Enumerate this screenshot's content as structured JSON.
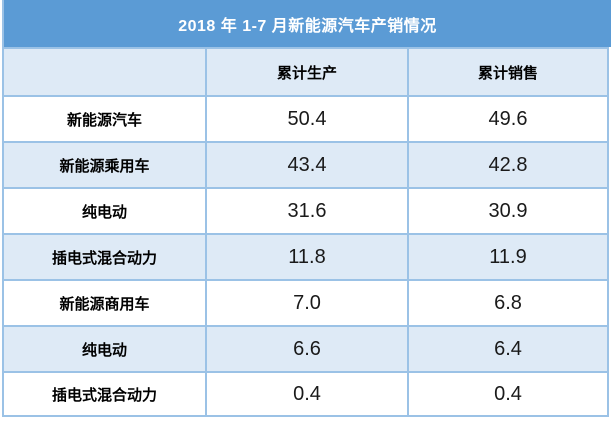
{
  "table": {
    "title": "2018 年 1-7 月新能源汽车产销情况",
    "header": {
      "col1": "",
      "col2": "累计生产",
      "col3": "累计销售"
    },
    "rows": [
      {
        "label": "新能源汽车",
        "production": "50.4",
        "sales": "49.6"
      },
      {
        "label": "新能源乘用车",
        "production": "43.4",
        "sales": "42.8"
      },
      {
        "label": "纯电动",
        "production": "31.6",
        "sales": "30.9"
      },
      {
        "label": "插电式混合动力",
        "production": "11.8",
        "sales": "11.9"
      },
      {
        "label": "新能源商用车",
        "production": "7.0",
        "sales": "6.8"
      },
      {
        "label": "纯电动",
        "production": "6.6",
        "sales": "6.4"
      },
      {
        "label": "插电式混合动力",
        "production": "0.4",
        "sales": "0.4"
      }
    ]
  },
  "colors": {
    "title_bg": "#5B9BD5",
    "band_bg": "#DEEAF6",
    "border": "#9BC2E6",
    "title_text": "#FFFFFF",
    "body_text": "#000000"
  },
  "chart_data": {
    "type": "table",
    "title": "2018 年 1-7 月新能源汽车产销情况",
    "columns": [
      "",
      "累计生产",
      "累计销售"
    ],
    "rows": [
      [
        "新能源汽车",
        50.4,
        49.6
      ],
      [
        "新能源乘用车",
        43.4,
        42.8
      ],
      [
        "纯电动",
        31.6,
        30.9
      ],
      [
        "插电式混合动力",
        11.8,
        11.9
      ],
      [
        "新能源商用车",
        7.0,
        6.8
      ],
      [
        "纯电动",
        6.6,
        6.4
      ],
      [
        "插电式混合动力",
        0.4,
        0.4
      ]
    ],
    "layout_hints": {
      "banded_rows": true,
      "band_start": "white",
      "title_bar": "merged full-width blue header",
      "alignment": "all cells centered"
    }
  }
}
